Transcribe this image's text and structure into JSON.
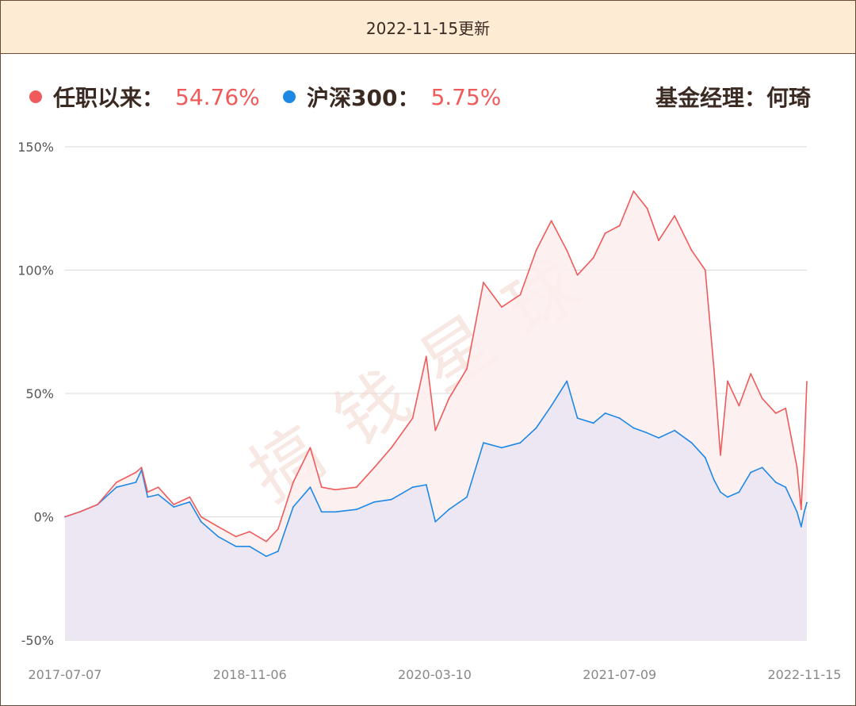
{
  "header": {
    "title": "2022-11-15更新"
  },
  "legend": {
    "series1_label": "任职以来：",
    "series1_value": "54.76%",
    "series2_label": "沪深300：",
    "series2_value": "5.75%",
    "manager": "基金经理：何琦"
  },
  "watermark": "搞钱星球",
  "colors": {
    "series1": "#f05a5a",
    "series2": "#1e88e5",
    "fill1": "#fdeeee",
    "fill2": "#ebe6f1",
    "grid": "#d9d9d9",
    "header_bg": "#fdebd4"
  },
  "chart_data": {
    "type": "area",
    "ylim": [
      -50,
      150
    ],
    "y_ticks": [
      "150%",
      "100%",
      "50%",
      "0%",
      "-50%"
    ],
    "x_ticks": [
      "2017-07-07",
      "2018-11-06",
      "2020-03-10",
      "2021-07-09",
      "2022-11-15"
    ],
    "x_range": [
      "2017-07-07",
      "2022-11-15"
    ],
    "grid": true,
    "series": [
      {
        "name": "任职以来",
        "color": "#f05a5a",
        "points": [
          [
            "2017-07-07",
            0
          ],
          [
            "2017-08-15",
            2
          ],
          [
            "2017-10-01",
            5
          ],
          [
            "2017-11-20",
            14
          ],
          [
            "2018-01-10",
            18
          ],
          [
            "2018-01-25",
            20
          ],
          [
            "2018-02-10",
            10
          ],
          [
            "2018-03-10",
            12
          ],
          [
            "2018-04-20",
            5
          ],
          [
            "2018-06-01",
            8
          ],
          [
            "2018-07-01",
            0
          ],
          [
            "2018-08-15",
            -4
          ],
          [
            "2018-10-01",
            -8
          ],
          [
            "2018-11-06",
            -6
          ],
          [
            "2018-12-20",
            -10
          ],
          [
            "2019-01-20",
            -5
          ],
          [
            "2019-03-01",
            14
          ],
          [
            "2019-04-15",
            28
          ],
          [
            "2019-05-15",
            12
          ],
          [
            "2019-06-20",
            11
          ],
          [
            "2019-08-15",
            12
          ],
          [
            "2019-10-01",
            20
          ],
          [
            "2019-11-15",
            28
          ],
          [
            "2020-01-10",
            40
          ],
          [
            "2020-02-15",
            65
          ],
          [
            "2020-03-10",
            35
          ],
          [
            "2020-04-15",
            48
          ],
          [
            "2020-06-01",
            60
          ],
          [
            "2020-07-15",
            95
          ],
          [
            "2020-09-01",
            85
          ],
          [
            "2020-10-20",
            90
          ],
          [
            "2020-12-01",
            108
          ],
          [
            "2021-01-10",
            120
          ],
          [
            "2021-02-20",
            108
          ],
          [
            "2021-03-20",
            98
          ],
          [
            "2021-05-01",
            105
          ],
          [
            "2021-06-01",
            115
          ],
          [
            "2021-07-09",
            118
          ],
          [
            "2021-08-15",
            132
          ],
          [
            "2021-09-20",
            125
          ],
          [
            "2021-10-20",
            112
          ],
          [
            "2021-12-01",
            122
          ],
          [
            "2022-01-15",
            108
          ],
          [
            "2022-02-20",
            100
          ],
          [
            "2022-03-15",
            60
          ],
          [
            "2022-04-01",
            25
          ],
          [
            "2022-04-20",
            55
          ],
          [
            "2022-05-20",
            45
          ],
          [
            "2022-06-20",
            58
          ],
          [
            "2022-07-20",
            48
          ],
          [
            "2022-08-25",
            42
          ],
          [
            "2022-09-20",
            44
          ],
          [
            "2022-10-20",
            20
          ],
          [
            "2022-10-31",
            3
          ],
          [
            "2022-11-08",
            28
          ],
          [
            "2022-11-15",
            54.76
          ]
        ]
      },
      {
        "name": "沪深300",
        "color": "#1e88e5",
        "points": [
          [
            "2017-07-07",
            0
          ],
          [
            "2017-08-15",
            2
          ],
          [
            "2017-10-01",
            5
          ],
          [
            "2017-11-20",
            12
          ],
          [
            "2018-01-10",
            14
          ],
          [
            "2018-01-25",
            19
          ],
          [
            "2018-02-10",
            8
          ],
          [
            "2018-03-10",
            9
          ],
          [
            "2018-04-20",
            4
          ],
          [
            "2018-06-01",
            6
          ],
          [
            "2018-07-01",
            -2
          ],
          [
            "2018-08-15",
            -8
          ],
          [
            "2018-10-01",
            -12
          ],
          [
            "2018-11-06",
            -12
          ],
          [
            "2018-12-20",
            -16
          ],
          [
            "2019-01-20",
            -14
          ],
          [
            "2019-03-01",
            4
          ],
          [
            "2019-04-15",
            12
          ],
          [
            "2019-05-15",
            2
          ],
          [
            "2019-06-20",
            2
          ],
          [
            "2019-08-15",
            3
          ],
          [
            "2019-10-01",
            6
          ],
          [
            "2019-11-15",
            7
          ],
          [
            "2020-01-10",
            12
          ],
          [
            "2020-02-15",
            13
          ],
          [
            "2020-03-10",
            -2
          ],
          [
            "2020-04-15",
            3
          ],
          [
            "2020-06-01",
            8
          ],
          [
            "2020-07-15",
            30
          ],
          [
            "2020-09-01",
            28
          ],
          [
            "2020-10-20",
            30
          ],
          [
            "2020-12-01",
            36
          ],
          [
            "2021-01-10",
            45
          ],
          [
            "2021-02-20",
            55
          ],
          [
            "2021-03-20",
            40
          ],
          [
            "2021-05-01",
            38
          ],
          [
            "2021-06-01",
            42
          ],
          [
            "2021-07-09",
            40
          ],
          [
            "2021-08-15",
            36
          ],
          [
            "2021-09-20",
            34
          ],
          [
            "2021-10-20",
            32
          ],
          [
            "2021-12-01",
            35
          ],
          [
            "2022-01-15",
            30
          ],
          [
            "2022-02-20",
            24
          ],
          [
            "2022-03-15",
            15
          ],
          [
            "2022-04-01",
            10
          ],
          [
            "2022-04-20",
            8
          ],
          [
            "2022-05-20",
            10
          ],
          [
            "2022-06-20",
            18
          ],
          [
            "2022-07-20",
            20
          ],
          [
            "2022-08-25",
            14
          ],
          [
            "2022-09-20",
            12
          ],
          [
            "2022-10-20",
            2
          ],
          [
            "2022-10-31",
            -4
          ],
          [
            "2022-11-08",
            2
          ],
          [
            "2022-11-15",
            5.75
          ]
        ]
      }
    ]
  }
}
